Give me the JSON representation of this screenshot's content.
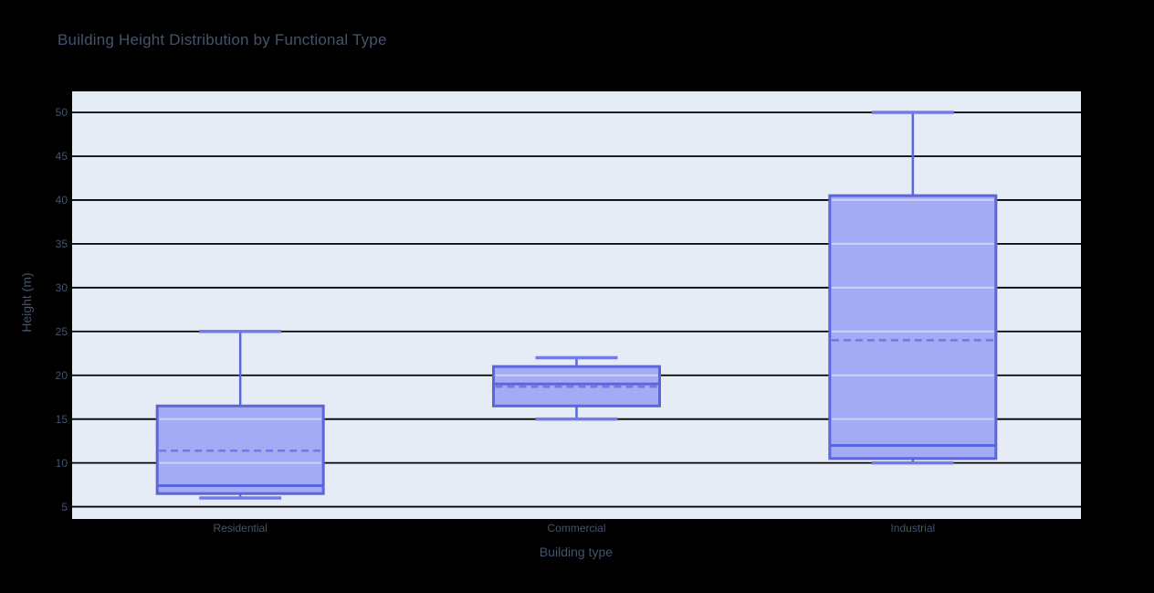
{
  "chart": {
    "title": "Building Height Distribution by Functional Type",
    "xlabel": "Building type",
    "ylabel": "Height (m)"
  },
  "chart_data": {
    "type": "box",
    "title": "Building Height Distribution by Functional Type",
    "xlabel": "Building type",
    "ylabel": "Height (m)",
    "categories": [
      "Residential",
      "Commercial",
      "Industrial"
    ],
    "series": [
      {
        "name": "Residential",
        "min": 6,
        "q1": 6.5,
        "median": 7.4,
        "mean": 11.4,
        "q3": 16.5,
        "max": 25
      },
      {
        "name": "Commercial",
        "min": 15,
        "q1": 16.5,
        "median": 19,
        "mean": 18.7,
        "q3": 21,
        "max": 22
      },
      {
        "name": "Industrial",
        "min": 10,
        "q1": 10.5,
        "median": 12,
        "mean": 24,
        "q3": 40.5,
        "max": 50
      }
    ],
    "shows_mean_dashed_line": true,
    "ylim": [
      3.6,
      52.4
    ],
    "yticks": [
      5,
      10,
      15,
      20,
      25,
      30,
      35,
      40,
      45,
      50
    ],
    "grid": true,
    "legend": false,
    "style": {
      "page_bg": "#000000",
      "plot_bg": "#e5ecf6",
      "grid_color": "#000000",
      "text_color": "#45536d",
      "box_line": "#5b65dd",
      "box_fill": "#a4abf5",
      "whisker_cap": "#727bea",
      "mean_line": "#6f78e4",
      "inner_grid": "#ffffff"
    }
  }
}
